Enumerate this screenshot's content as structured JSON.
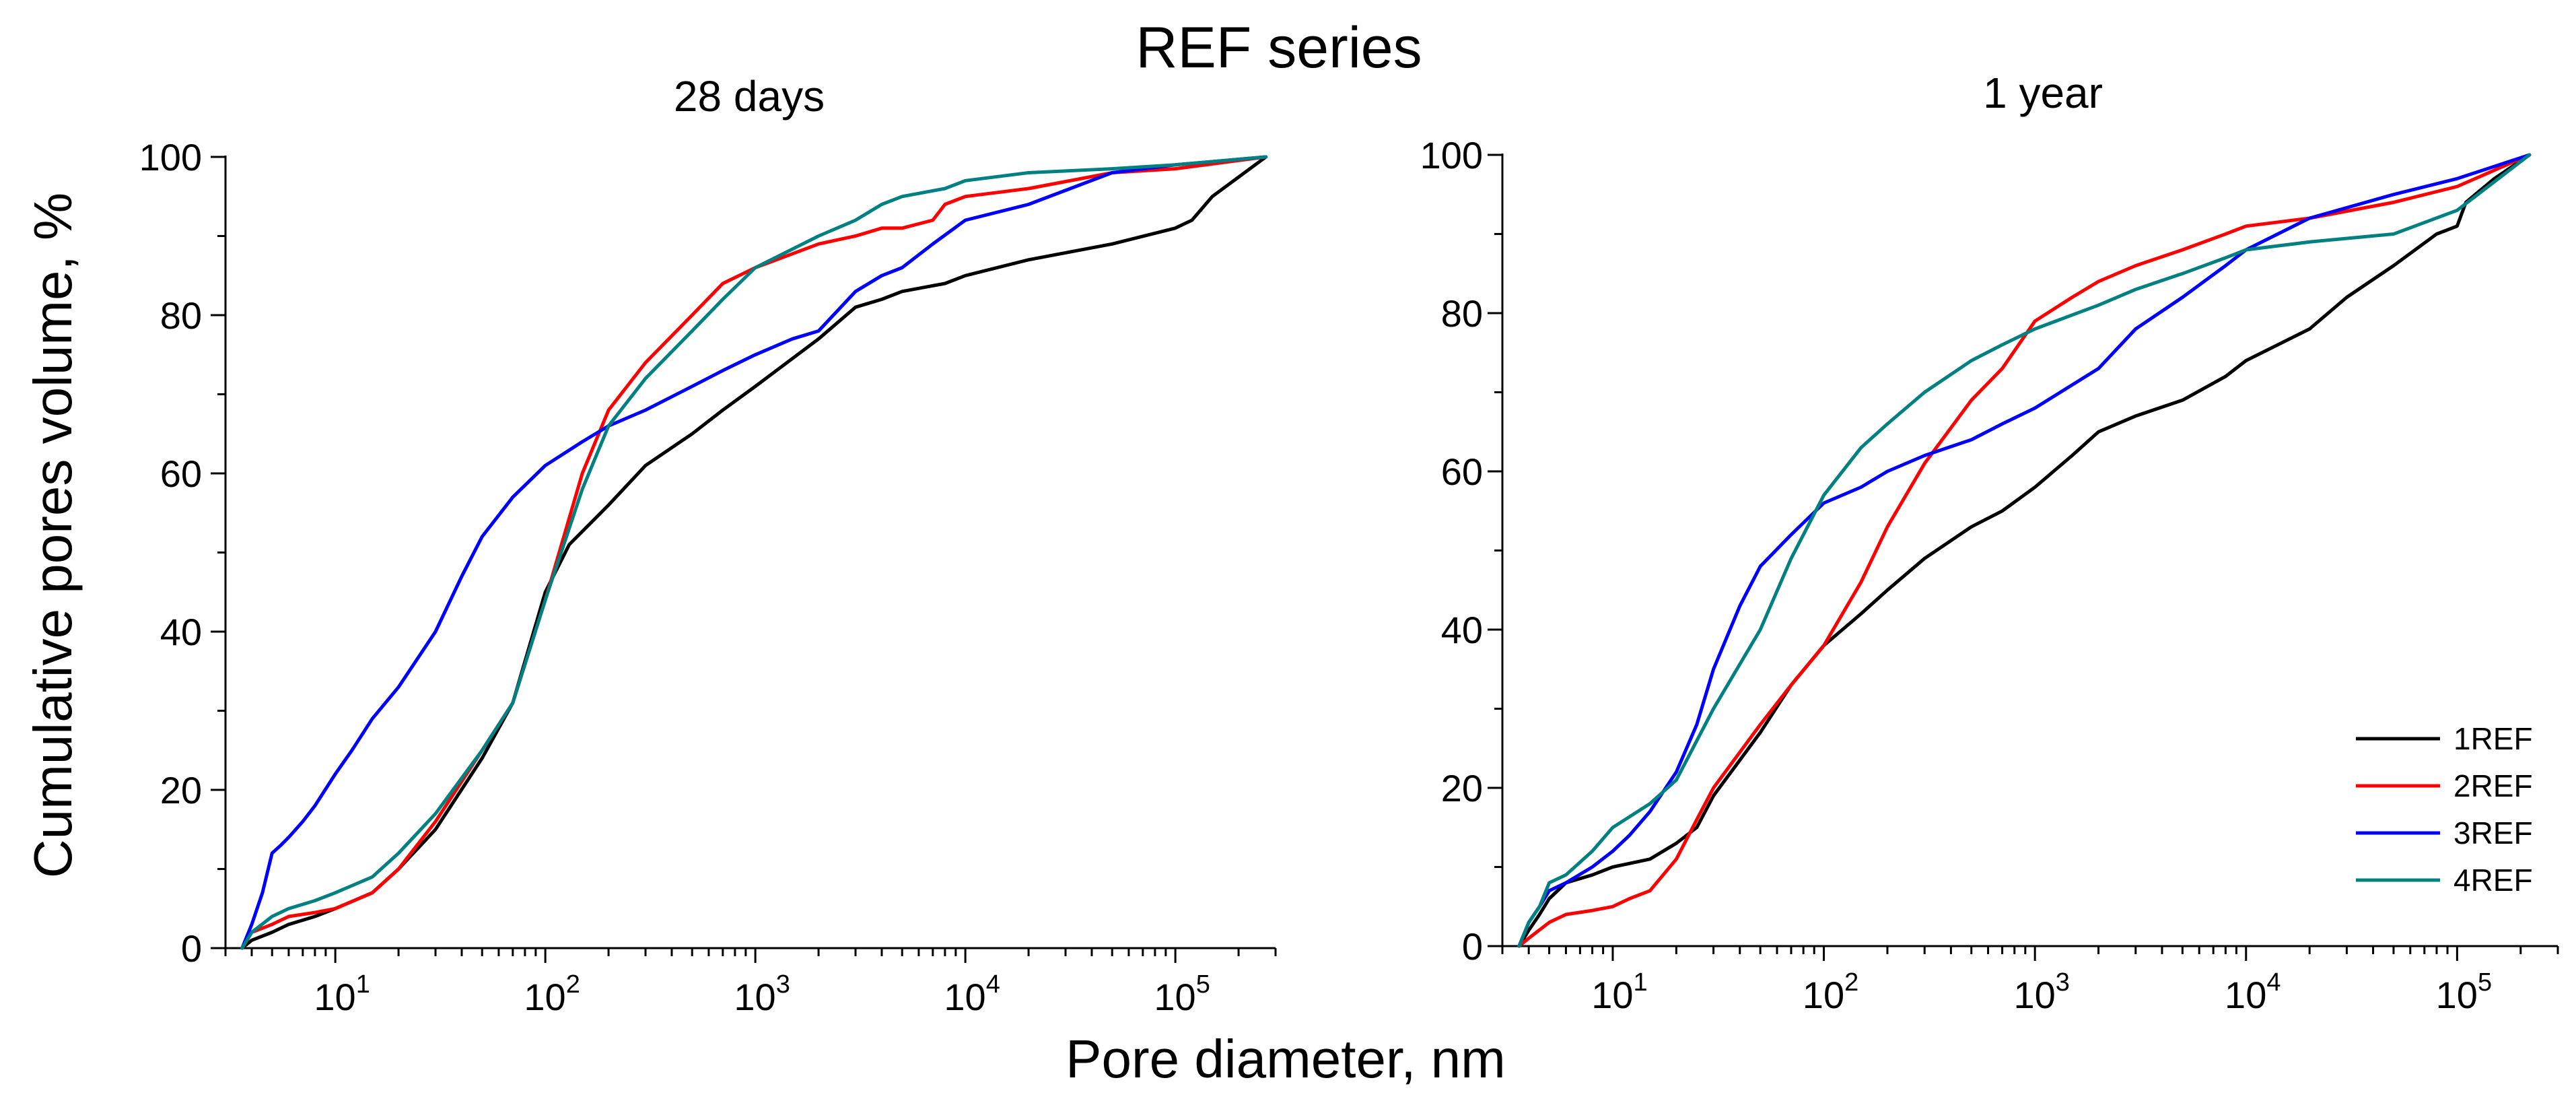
{
  "figure": {
    "suptitle": "REF series",
    "xlabel": "Pore diameter, nm",
    "ylabel": "Cumulative pores volume, %"
  },
  "colors": {
    "1REF": "#000000",
    "2REF": "#ff0000",
    "3REF": "#0000ff",
    "4REF": "#008080"
  },
  "legend": {
    "placement": "lower-right of right panel",
    "entries": [
      "1REF",
      "2REF",
      "3REF",
      "4REF"
    ]
  },
  "chart_data": [
    {
      "type": "line",
      "title": "28 days",
      "xscale": "log",
      "xlim": [
        3,
        300000
      ],
      "ylim": [
        0,
        100
      ],
      "yticks": [
        0,
        20,
        40,
        60,
        80,
        100
      ],
      "xticks": [
        {
          "base": "10",
          "exp": "1",
          "value": 10
        },
        {
          "base": "10",
          "exp": "2",
          "value": 100
        },
        {
          "base": "10",
          "exp": "3",
          "value": 1000
        },
        {
          "base": "10",
          "exp": "4",
          "value": 10000
        },
        {
          "base": "10",
          "exp": "5",
          "value": 100000
        }
      ],
      "series": [
        {
          "name": "1REF",
          "x": [
            3.6,
            4,
            5,
            6,
            8,
            10,
            15,
            20,
            30,
            50,
            70,
            100,
            130,
            200,
            300,
            500,
            700,
            1000,
            2000,
            3000,
            4000,
            5000,
            8000,
            10000,
            20000,
            50000,
            100000,
            120000,
            150000,
            270000
          ],
          "y": [
            0,
            1,
            2,
            3,
            4,
            5,
            7,
            10,
            15,
            24,
            31,
            45,
            51,
            56,
            61,
            65,
            68,
            71,
            77,
            81,
            82,
            83,
            84,
            85,
            87,
            89,
            91,
            92,
            95,
            100
          ]
        },
        {
          "name": "2REF",
          "x": [
            3.6,
            4,
            5,
            6,
            8,
            10,
            15,
            20,
            30,
            50,
            70,
            100,
            150,
            200,
            300,
            500,
            700,
            1000,
            2000,
            3000,
            4000,
            5000,
            7000,
            8000,
            10000,
            20000,
            50000,
            100000,
            270000
          ],
          "y": [
            0,
            2,
            3,
            4,
            4.5,
            5,
            7,
            10,
            16,
            25,
            31,
            44,
            60,
            68,
            74,
            80,
            84,
            86,
            89,
            90,
            91,
            91,
            92,
            94,
            95,
            96,
            98,
            98.5,
            100
          ]
        },
        {
          "name": "3REF",
          "x": [
            3.6,
            4,
            4.5,
            5,
            5.5,
            6,
            7,
            8,
            10,
            12,
            15,
            20,
            30,
            40,
            50,
            70,
            100,
            150,
            200,
            300,
            500,
            700,
            1000,
            1500,
            2000,
            3000,
            4000,
            5000,
            7000,
            10000,
            20000,
            50000,
            100000,
            270000
          ],
          "y": [
            0,
            3,
            7,
            12,
            13,
            14,
            16,
            18,
            22,
            25,
            29,
            33,
            40,
            47,
            52,
            57,
            61,
            64,
            66,
            68,
            71,
            73,
            75,
            77,
            78,
            83,
            85,
            86,
            89,
            92,
            94,
            98,
            99,
            100
          ]
        },
        {
          "name": "4REF",
          "x": [
            3.6,
            4,
            5,
            6,
            8,
            10,
            15,
            20,
            30,
            50,
            70,
            100,
            150,
            200,
            300,
            500,
            700,
            1000,
            2000,
            3000,
            4000,
            5000,
            8000,
            10000,
            20000,
            50000,
            100000,
            270000
          ],
          "y": [
            0,
            2,
            4,
            5,
            6,
            7,
            9,
            12,
            17,
            25,
            31,
            44,
            58,
            66,
            72,
            78,
            82,
            86,
            90,
            92,
            94,
            95,
            96,
            97,
            98,
            98.5,
            99,
            100
          ]
        }
      ]
    },
    {
      "type": "line",
      "title": "1 year",
      "xscale": "log",
      "xlim": [
        3,
        300000
      ],
      "ylim": [
        0,
        100
      ],
      "yticks": [
        0,
        20,
        40,
        60,
        80,
        100
      ],
      "xticks": [
        {
          "base": "10",
          "exp": "1",
          "value": 10
        },
        {
          "base": "10",
          "exp": "2",
          "value": 100
        },
        {
          "base": "10",
          "exp": "3",
          "value": 1000
        },
        {
          "base": "10",
          "exp": "4",
          "value": 10000
        },
        {
          "base": "10",
          "exp": "5",
          "value": 100000
        }
      ],
      "series": [
        {
          "name": "1REF",
          "x": [
            3.6,
            4,
            4.5,
            5,
            6,
            8,
            10,
            15,
            20,
            25,
            30,
            50,
            70,
            100,
            150,
            200,
            300,
            500,
            700,
            1000,
            1500,
            2000,
            3000,
            5000,
            8000,
            10000,
            20000,
            30000,
            50000,
            80000,
            100000,
            110000,
            150000,
            220000
          ],
          "y": [
            0,
            2,
            4,
            6,
            8,
            9,
            10,
            11,
            13,
            15,
            19,
            27,
            33,
            38,
            42,
            45,
            49,
            53,
            55,
            58,
            62,
            65,
            67,
            69,
            72,
            74,
            78,
            82,
            86,
            90,
            91,
            94,
            97,
            100
          ]
        },
        {
          "name": "2REF",
          "x": [
            3.6,
            4,
            5,
            6,
            8,
            10,
            12,
            15,
            20,
            25,
            30,
            50,
            70,
            100,
            150,
            200,
            300,
            500,
            700,
            1000,
            1500,
            2000,
            3000,
            5000,
            8000,
            10000,
            20000,
            50000,
            100000,
            220000
          ],
          "y": [
            0,
            1,
            3,
            4,
            4.5,
            5,
            6,
            7,
            11,
            16,
            20,
            28,
            33,
            38,
            46,
            53,
            61,
            69,
            73,
            79,
            82,
            84,
            86,
            88,
            90,
            91,
            92,
            94,
            96,
            100
          ]
        },
        {
          "name": "3REF",
          "x": [
            3.6,
            4,
            4.5,
            5,
            6,
            8,
            10,
            12,
            15,
            20,
            25,
            30,
            40,
            50,
            70,
            100,
            150,
            200,
            300,
            500,
            700,
            1000,
            2000,
            3000,
            5000,
            8000,
            10000,
            20000,
            50000,
            100000,
            220000
          ],
          "y": [
            0,
            3,
            5,
            7,
            8,
            10,
            12,
            14,
            17,
            22,
            28,
            35,
            43,
            48,
            52,
            56,
            58,
            60,
            62,
            64,
            66,
            68,
            73,
            78,
            82,
            86,
            88,
            92,
            95,
            97,
            100
          ]
        },
        {
          "name": "4REF",
          "x": [
            3.6,
            4,
            4.5,
            5,
            6,
            8,
            10,
            15,
            20,
            30,
            50,
            70,
            100,
            150,
            200,
            300,
            500,
            700,
            1000,
            2000,
            3000,
            5000,
            8000,
            10000,
            20000,
            50000,
            100000,
            220000
          ],
          "y": [
            0,
            3,
            5,
            8,
            9,
            12,
            15,
            18,
            21,
            30,
            40,
            49,
            57,
            63,
            66,
            70,
            74,
            76,
            78,
            81,
            83,
            85,
            87,
            88,
            89,
            90,
            93,
            100
          ]
        }
      ]
    }
  ]
}
